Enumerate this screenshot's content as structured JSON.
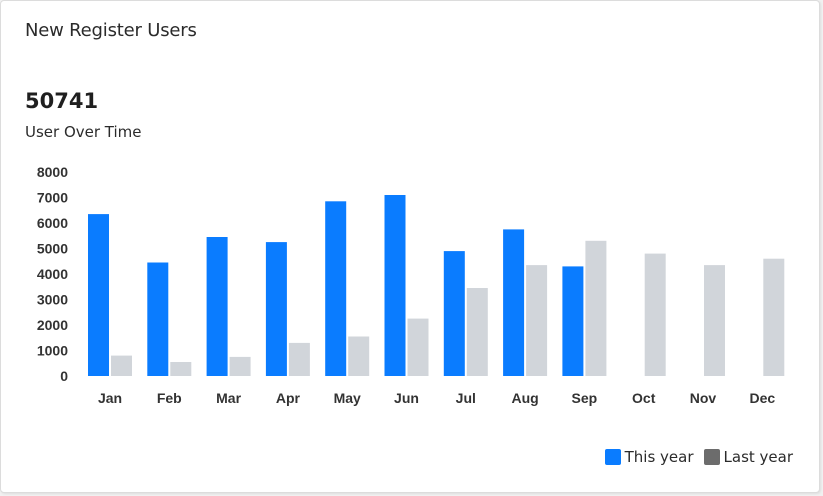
{
  "card": {
    "title": "New Register Users",
    "total": "50741",
    "subtitle": "User Over Time"
  },
  "legend": {
    "this_year_label": "This year",
    "last_year_label": "Last year",
    "this_year_color": "#0a7cff",
    "last_year_swatch_color": "#6c6c6c"
  },
  "chart_data": {
    "type": "bar",
    "title": "",
    "xlabel": "",
    "ylabel": "",
    "ylim": [
      0,
      8000
    ],
    "yticks": [
      0,
      1000,
      2000,
      3000,
      4000,
      5000,
      6000,
      7000,
      8000
    ],
    "grid": false,
    "legend_position": "bottom-right",
    "categories": [
      "Jan",
      "Feb",
      "Mar",
      "Apr",
      "May",
      "Jun",
      "Jul",
      "Aug",
      "Sep",
      "Oct",
      "Nov",
      "Dec"
    ],
    "series": [
      {
        "name": "This year",
        "color": "#0a7cff",
        "values": [
          6350,
          4450,
          5450,
          5250,
          6850,
          7100,
          4900,
          5750,
          4300,
          null,
          null,
          null
        ]
      },
      {
        "name": "Last year",
        "color": "#d1d5da",
        "values": [
          800,
          550,
          750,
          1300,
          1550,
          2250,
          3450,
          4350,
          5300,
          4800,
          4350,
          4600
        ]
      }
    ]
  }
}
